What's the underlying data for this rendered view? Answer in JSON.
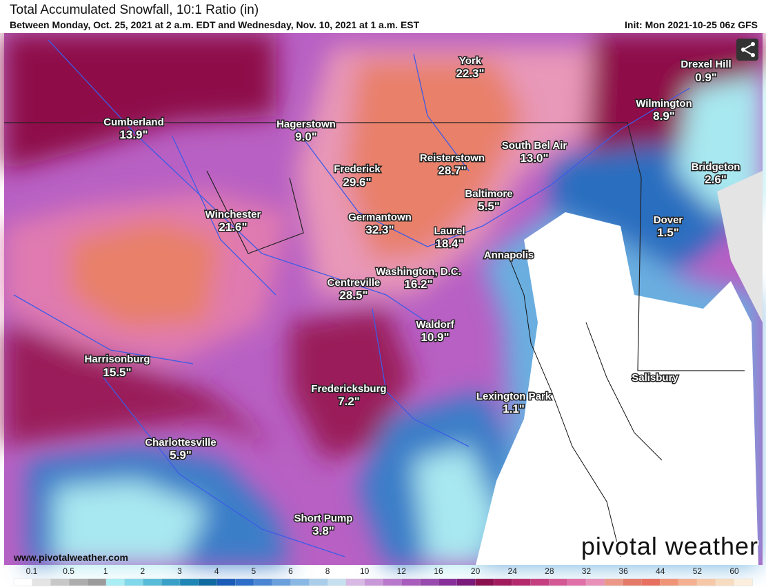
{
  "header": {
    "title": "Total Accumulated Snowfall, 10:1 Ratio (in)",
    "subtitle": "Between Monday, Oct. 25, 2021 at 2 a.m. EDT and Wednesday, Nov. 10, 2021 at 1 a.m. EST",
    "init": "Init: Mon 2021-10-25 06z GFS"
  },
  "cities": [
    {
      "name": "York",
      "value": "22.3\""
    },
    {
      "name": "Drexel Hill",
      "value": "0.9\""
    },
    {
      "name": "Cumberland",
      "value": "13.9\""
    },
    {
      "name": "Hagerstown",
      "value": "9.0\""
    },
    {
      "name": "Wilmington",
      "value": "8.9\""
    },
    {
      "name": "South Bel Air",
      "value": "13.0\""
    },
    {
      "name": "Reisterstown",
      "value": "28.7\""
    },
    {
      "name": "Frederick",
      "value": "29.6\""
    },
    {
      "name": "Bridgeton",
      "value": "2.6\""
    },
    {
      "name": "Baltimore",
      "value": "5.5\""
    },
    {
      "name": "Winchester",
      "value": "21.6\""
    },
    {
      "name": "Germantown",
      "value": "32.3\""
    },
    {
      "name": "Dover",
      "value": "1.5\""
    },
    {
      "name": "Laurel",
      "value": "18.4\""
    },
    {
      "name": "Annapolis"
    },
    {
      "name": "Washington, D.C.",
      "value": "16.2\""
    },
    {
      "name": "Centreville",
      "value": "28.5\""
    },
    {
      "name": "Waldorf",
      "value": "10.9\""
    },
    {
      "name": "Harrisonburg",
      "value": "15.5\""
    },
    {
      "name": "Salisbury"
    },
    {
      "name": "Fredericksburg",
      "value": "7.2\""
    },
    {
      "name": "Lexington Park",
      "value": "1.1\""
    },
    {
      "name": "Charlottesville",
      "value": "5.9\""
    },
    {
      "name": "Short Pump",
      "value": "3.8\""
    }
  ],
  "footer": {
    "url": "www.pivotalweather.com",
    "logo": "pivotal weather"
  },
  "legend": {
    "labels": [
      0.1,
      0.5,
      1,
      2,
      3,
      4,
      5,
      6,
      8,
      10,
      12,
      16,
      20,
      24,
      28,
      32,
      36,
      44,
      52,
      60
    ],
    "colors": [
      "#ffffff",
      "#e4e4e4",
      "#c8c8c8",
      "#adadad",
      "#9b9b9b",
      "#a8eef4",
      "#80d8ea",
      "#58bcd8",
      "#3aa0c8",
      "#1f86b5",
      "#0f6aa0",
      "#1a5cb8",
      "#2c6ec8",
      "#4a86d4",
      "#6aa0dc",
      "#8ab8e4",
      "#aacdea",
      "#c6e0f0",
      "#d8b8e4",
      "#c898d8",
      "#b878cc",
      "#a85cbc",
      "#984aae",
      "#88309a",
      "#7a1a7a",
      "#8a1050",
      "#a01a5c",
      "#b42a6c",
      "#c43e80",
      "#d45894",
      "#e070a8",
      "#e890b8",
      "#ec9888",
      "#e47a68",
      "#e87060",
      "#f09478",
      "#f4b090",
      "#f6c8a8",
      "#f8dcc0",
      "#fbeedc"
    ]
  }
}
